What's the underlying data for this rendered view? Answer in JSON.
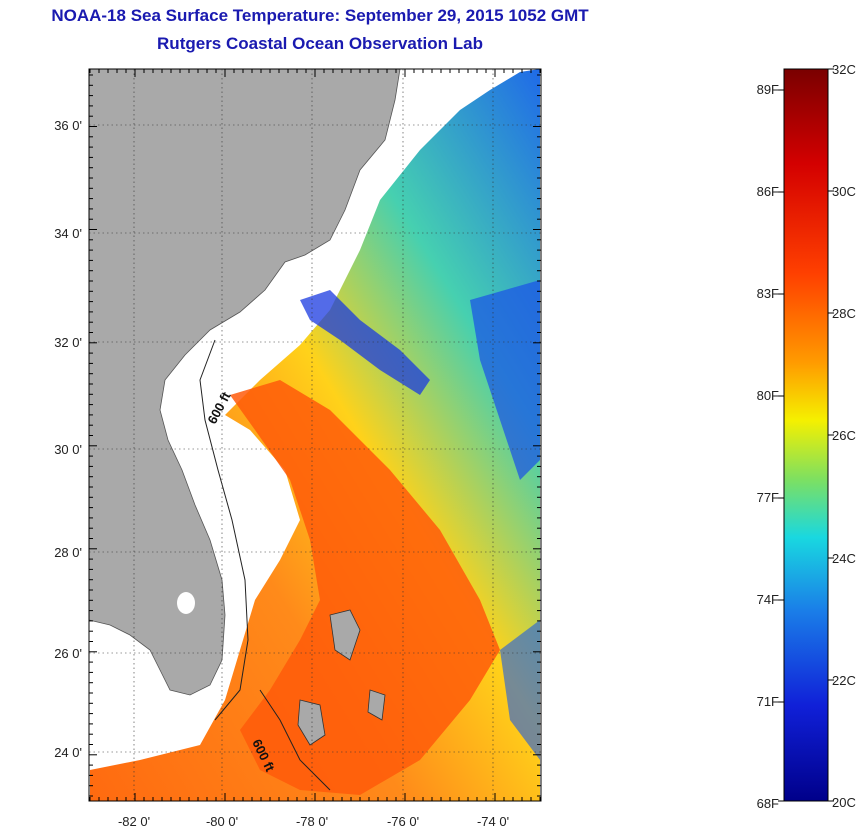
{
  "header": {
    "title": "NOAA-18 Sea Surface Temperature:  September 29, 2015 1052 GMT",
    "subtitle": "Rutgers Coastal Ocean Observation Lab"
  },
  "map": {
    "lat_labels": [
      "36 0'",
      "34 0'",
      "32 0'",
      "30 0'",
      "28 0'",
      "26 0'",
      "24 0'"
    ],
    "lon_labels": [
      "-82 0'",
      "-80 0'",
      "-78 0'",
      "-76 0'",
      "-74 0'"
    ],
    "isobath_label_1": "600 ft",
    "isobath_label_2": "600 ft",
    "colors": {
      "land": "#a9a9a9",
      "nodata": "#ffffff",
      "frame": "#000000"
    }
  },
  "colorbar": {
    "celsius_labels": [
      "32C",
      "30C",
      "28C",
      "26C",
      "24C",
      "22C",
      "20C"
    ],
    "fahrenheit_labels": [
      "89F",
      "86F",
      "83F",
      "80F",
      "77F",
      "74F",
      "71F",
      "68F"
    ],
    "stops": [
      "#7a0000",
      "#d40000",
      "#ff4000",
      "#ff9a00",
      "#f5f000",
      "#7ee060",
      "#19d8e0",
      "#1a7ee8",
      "#1020d8",
      "#00008a"
    ]
  }
}
